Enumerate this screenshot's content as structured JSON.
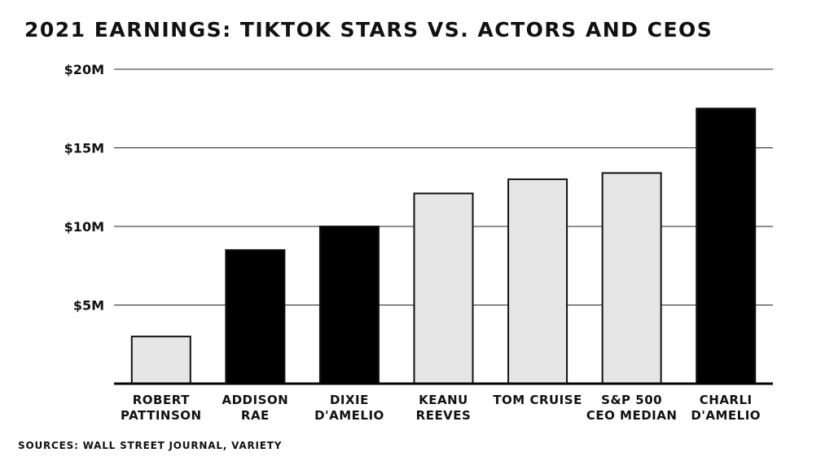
{
  "chart_data": {
    "type": "bar",
    "title": "2021 Earnings: TikTok Stars vs. Actors and CEOs",
    "categories": [
      [
        "ROBERT",
        "PATTINSON"
      ],
      [
        "ADDISON",
        "RAE"
      ],
      [
        "DIXIE",
        "D'AMELIO"
      ],
      [
        "KEANU",
        "REEVES"
      ],
      [
        "TOM CRUISE"
      ],
      [
        "S&P 500",
        "CEO MEDIAN"
      ],
      [
        "CHARLI",
        "D'AMELIO"
      ]
    ],
    "values": [
      3,
      8.5,
      10,
      12.1,
      13,
      13.4,
      17.5
    ],
    "unit": "millions USD",
    "bar_groups": [
      "other",
      "tiktok",
      "tiktok",
      "other",
      "other",
      "other",
      "tiktok"
    ],
    "colors": {
      "tiktok": "#000000",
      "other": "#e6e6e6",
      "outline": "#111111",
      "grid": "#222222"
    },
    "ylim": [
      0,
      20
    ],
    "yticks": [
      5,
      10,
      15,
      20
    ],
    "ytick_labels": [
      "$5M",
      "$10M",
      "$15M",
      "$20M"
    ],
    "grid": true,
    "legend": "none",
    "xlabel": "",
    "ylabel": ""
  },
  "source": "Sources: Wall Street Journal, Variety"
}
